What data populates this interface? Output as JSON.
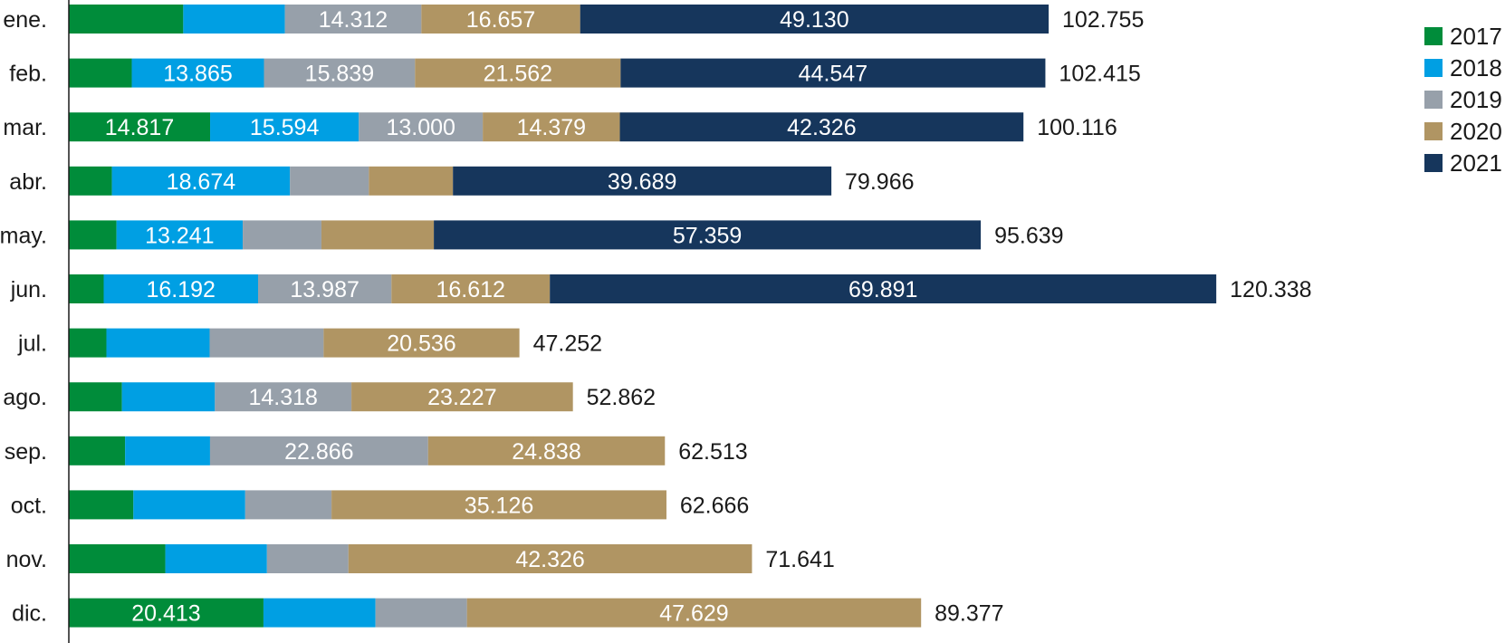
{
  "chart_data": {
    "type": "bar",
    "orientation": "horizontal",
    "stacked": true,
    "title": "",
    "xlabel": "",
    "ylabel": "",
    "grid": false,
    "legend_position": "top-right",
    "categories": [
      "ene.",
      "feb.",
      "mar.",
      "abr.",
      "may.",
      "jun.",
      "jul.",
      "ago.",
      "sep.",
      "oct.",
      "nov.",
      "dic."
    ],
    "series": [
      {
        "name": "2017",
        "color": "#008C3A",
        "values": [
          12.0,
          6.602,
          14.817,
          4.52,
          5.0,
          3.656,
          3.94,
          5.57,
          5.9,
          6.77,
          10.12,
          20.413
        ],
        "labels": [
          "",
          "",
          "14.817",
          "",
          "",
          "",
          "",
          "",
          "",
          "",
          "",
          "20.413"
        ]
      },
      {
        "name": "2018",
        "color": "#009FE3",
        "values": [
          10.66,
          13.865,
          15.594,
          18.674,
          13.241,
          16.192,
          10.83,
          9.75,
          8.91,
          11.73,
          10.66,
          11.75
        ],
        "labels": [
          "",
          "13.865",
          "15.594",
          "18.674",
          "13.241",
          "16.192",
          "",
          "",
          "",
          "",
          "",
          ""
        ]
      },
      {
        "name": "2019",
        "color": "#97A0AA",
        "values": [
          14.312,
          15.839,
          13.0,
          8.27,
          8.25,
          13.987,
          11.95,
          14.318,
          22.866,
          9.05,
          8.54,
          9.59
        ],
        "labels": [
          "14.312",
          "15.839",
          "13.000",
          "",
          "",
          "13.987",
          "",
          "14.318",
          "22.866",
          "",
          "",
          ""
        ]
      },
      {
        "name": "2020",
        "color": "#B09563",
        "values": [
          16.657,
          21.562,
          14.379,
          8.82,
          11.79,
          16.612,
          20.536,
          23.227,
          24.838,
          35.126,
          42.326,
          47.629
        ],
        "labels": [
          "16.657",
          "21.562",
          "14.379",
          "",
          "",
          "16.612",
          "20.536",
          "23.227",
          "24.838",
          "35.126",
          "42.326",
          "47.629"
        ]
      },
      {
        "name": "2021",
        "color": "#16365C",
        "values": [
          49.13,
          44.547,
          42.326,
          39.689,
          57.359,
          69.891,
          0,
          0,
          0,
          0,
          0,
          0
        ],
        "labels": [
          "49.130",
          "44.547",
          "42.326",
          "39.689",
          "57.359",
          "69.891",
          "",
          "",
          "",
          "",
          "",
          ""
        ]
      }
    ],
    "totals": [
      102.755,
      102.415,
      100.116,
      79.966,
      95.639,
      120.338,
      47.252,
      52.862,
      62.513,
      62.666,
      71.641,
      89.377
    ],
    "total_labels": [
      "102.755",
      "102.415",
      "100.116",
      "79.966",
      "95.639",
      "120.338",
      "47.252",
      "52.862",
      "62.513",
      "62.666",
      "71.641",
      "89.377"
    ],
    "xlim": [
      0,
      150
    ]
  }
}
